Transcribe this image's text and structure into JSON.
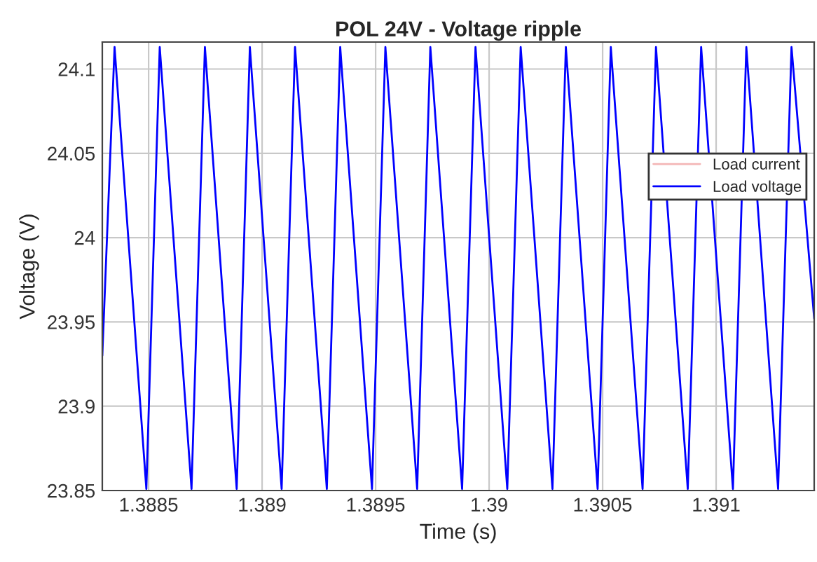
{
  "chart_data": {
    "type": "line",
    "title": "POL 24V - Voltage ripple",
    "xlabel": "Time (s)",
    "ylabel": "Voltage (V)",
    "xlim": [
      1.388296,
      1.391432
    ],
    "ylim": [
      23.85,
      24.116
    ],
    "xticks": [
      1.3885,
      1.389,
      1.3895,
      1.39,
      1.3905,
      1.391
    ],
    "yticks": [
      23.85,
      23.9,
      23.95,
      24,
      24.05,
      24.1
    ],
    "grid": true,
    "legend": "right",
    "series": [
      {
        "name": "Load current",
        "color": "#f4b6b6"
      },
      {
        "name": "Load voltage",
        "color": "#0000ff",
        "x": [
          1.388296,
          1.38835,
          1.38849,
          1.388549,
          1.388689,
          1.388748,
          1.388888,
          1.388946,
          1.389086,
          1.389145,
          1.389285,
          1.389344,
          1.389484,
          1.389543,
          1.389683,
          1.389741,
          1.389881,
          1.38994,
          1.39008,
          1.390139,
          1.390279,
          1.390338,
          1.390478,
          1.390536,
          1.390676,
          1.390735,
          1.390875,
          1.390934,
          1.391074,
          1.391133,
          1.391273,
          1.391332,
          1.391432
        ],
        "values": [
          23.93,
          24.113,
          23.851,
          24.113,
          23.851,
          24.113,
          23.851,
          24.113,
          23.851,
          24.113,
          23.851,
          24.113,
          23.851,
          24.113,
          23.851,
          24.113,
          23.851,
          24.113,
          23.851,
          24.113,
          23.851,
          24.113,
          23.851,
          24.113,
          23.851,
          24.113,
          23.851,
          24.113,
          23.851,
          24.113,
          23.851,
          24.113,
          23.952
        ]
      }
    ]
  }
}
